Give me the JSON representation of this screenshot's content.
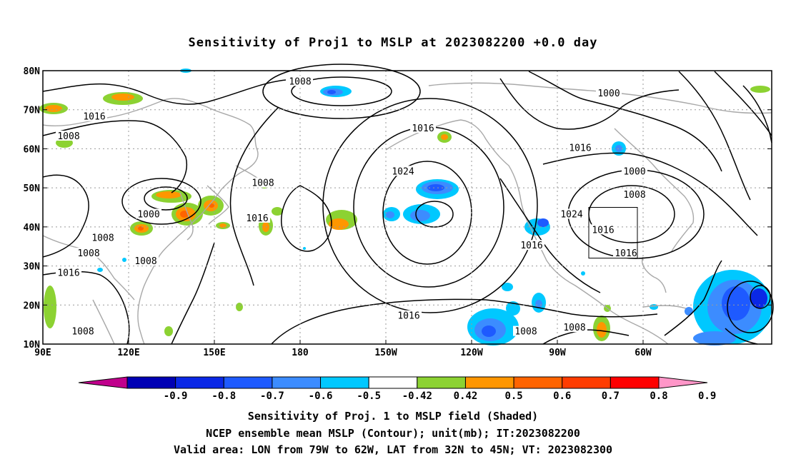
{
  "title": "Sensitivity of Proj1 to MSLP at 2023082200 +0.0 day",
  "lat_labels": [
    "80N",
    "70N",
    "60N",
    "50N",
    "40N",
    "30N",
    "20N",
    "10N"
  ],
  "lon_labels": [
    "90E",
    "120E",
    "150E",
    "180",
    "150W",
    "120W",
    "90W",
    "60W"
  ],
  "contour_labels": [
    {
      "text": "1008",
      "lon": 180,
      "lat": 77
    },
    {
      "text": "1000",
      "lon": -72,
      "lat": 74
    },
    {
      "text": "1016",
      "lon": 108,
      "lat": 68
    },
    {
      "text": "1008",
      "lon": 99,
      "lat": 63
    },
    {
      "text": "1016",
      "lon": -137,
      "lat": 65
    },
    {
      "text": "1016",
      "lon": -82,
      "lat": 60
    },
    {
      "text": "1024",
      "lon": -144,
      "lat": 54
    },
    {
      "text": "1008",
      "lon": 167,
      "lat": 51
    },
    {
      "text": "1000",
      "lon": -63,
      "lat": 54
    },
    {
      "text": "1008",
      "lon": -63,
      "lat": 48
    },
    {
      "text": "1000",
      "lon": 127,
      "lat": 43
    },
    {
      "text": "1016",
      "lon": 165,
      "lat": 42
    },
    {
      "text": "1024",
      "lon": -85,
      "lat": 43
    },
    {
      "text": "1016",
      "lon": -74,
      "lat": 39
    },
    {
      "text": "1008",
      "lon": 111,
      "lat": 37
    },
    {
      "text": "1016",
      "lon": -99,
      "lat": 35
    },
    {
      "text": "1008",
      "lon": 106,
      "lat": 33
    },
    {
      "text": "1016",
      "lon": -66,
      "lat": 33
    },
    {
      "text": "1008",
      "lon": 126,
      "lat": 31
    },
    {
      "text": "1016",
      "lon": 99,
      "lat": 28
    },
    {
      "text": "1016",
      "lon": -142,
      "lat": 17
    },
    {
      "text": "1008",
      "lon": 104,
      "lat": 13
    },
    {
      "text": "1008",
      "lon": -101,
      "lat": 13
    },
    {
      "text": "1008",
      "lon": -84,
      "lat": 14
    }
  ],
  "colorbar": {
    "colors": [
      "#c0008c",
      "#0000b4",
      "#0a28e6",
      "#1e5aff",
      "#3c8cff",
      "#00c8ff",
      "#ffffff",
      "#8cd232",
      "#ff9600",
      "#ff6400",
      "#ff3c00",
      "#ff0000",
      "#ff96c8"
    ],
    "labels": [
      "-0.9",
      "-0.8",
      "-0.7",
      "-0.6",
      "-0.5",
      "-0.42",
      "0.42",
      "0.5",
      "0.6",
      "0.7",
      "0.8",
      "0.9"
    ]
  },
  "captions": [
    "Sensitivity of Proj. 1 to MSLP field (Shaded)",
    "NCEP ensemble mean MSLP (Contour); unit(mb); IT:2023082200",
    "Valid area: LON from 79W to 62W, LAT from 32N to 45N; VT: 2023082300"
  ],
  "valid_area": {
    "lon_min": -79,
    "lon_max": -62,
    "lat_min": 32,
    "lat_max": 45
  }
}
